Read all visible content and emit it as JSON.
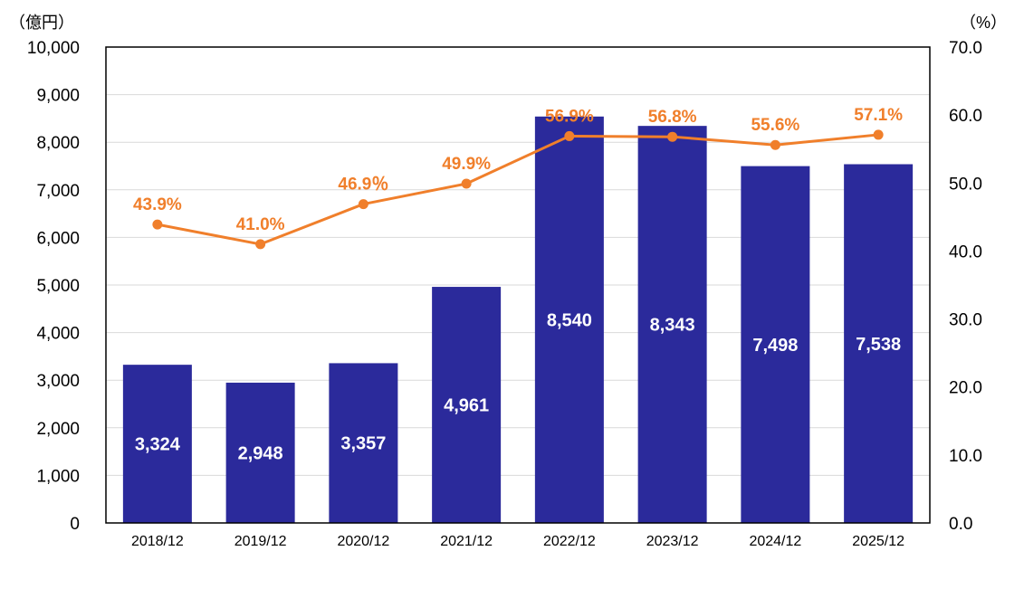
{
  "chart_data": {
    "type": "bar",
    "categories": [
      "2018/12",
      "2019/12",
      "2020/12",
      "2021/12",
      "2022/12",
      "2023/12",
      "2024/12",
      "2025/12"
    ],
    "series": [
      {
        "type": "bar",
        "axis": "left",
        "values": [
          3324,
          2948,
          3357,
          4961,
          8540,
          8343,
          7498,
          7538
        ],
        "labels": [
          "3,324",
          "2,948",
          "3,357",
          "4,961",
          "8,540",
          "8,343",
          "7,498",
          "7,538"
        ],
        "color": "#2b2a9b"
      },
      {
        "type": "line",
        "axis": "right",
        "values": [
          43.9,
          41.0,
          46.9,
          49.9,
          56.9,
          56.8,
          55.6,
          57.1
        ],
        "labels": [
          "43.9%",
          "41.0%",
          "46.9％",
          "49.9%",
          "56.9%",
          "56.8%",
          "55.6%",
          "57.1%"
        ],
        "color": "#f07f2b"
      }
    ],
    "y_left": {
      "unit_label": "（億円）",
      "range": [
        0,
        10000
      ],
      "ticks": [
        "0",
        "1,000",
        "2,000",
        "3,000",
        "4,000",
        "5,000",
        "6,000",
        "7,000",
        "8,000",
        "9,000",
        "10,000"
      ]
    },
    "y_right": {
      "unit_label": "（%）",
      "range": [
        0,
        70
      ],
      "ticks": [
        "0.0",
        "10.0",
        "20.0",
        "30.0",
        "40.0",
        "50.0",
        "60.0",
        "70.0"
      ]
    },
    "grid": true,
    "legend": "none"
  }
}
